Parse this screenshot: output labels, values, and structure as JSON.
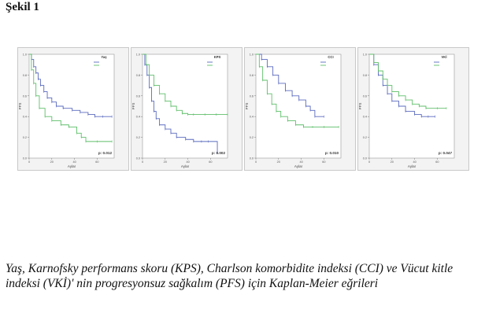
{
  "figure": {
    "title": "Şekil 1",
    "caption": "Yaş, Karnofsky performans skoru (KPS), Charlson komorbidite indeksi (CCI) ve Vücut kitle indeksi (VKİ)' nin progresyonsuz sağkalım (PFS) için Kaplan-Meier eğrileri"
  },
  "chart_data": [
    {
      "type": "line",
      "xlabel": "Aylar",
      "ylabel": "PFS",
      "legend_title": "Yaş",
      "legend_position": "top-right",
      "p_value": "p: 0.012",
      "xlim": [
        0,
        75
      ],
      "ylim": [
        0,
        1
      ],
      "x_ticks": [
        0,
        20,
        40,
        60
      ],
      "y_ticks": [
        0,
        0.2,
        0.4,
        0.6,
        0.8,
        1.0
      ],
      "colors": [
        "#5b6bbf",
        "#5fbf6a"
      ],
      "series": [
        {
          "x": [
            0,
            2,
            4,
            6,
            8,
            10,
            13,
            16,
            20,
            24,
            30,
            38,
            45,
            52,
            58,
            65,
            73
          ],
          "y": [
            1.0,
            0.95,
            0.88,
            0.82,
            0.76,
            0.7,
            0.64,
            0.58,
            0.54,
            0.5,
            0.48,
            0.46,
            0.44,
            0.42,
            0.4,
            0.4,
            0.4
          ]
        },
        {
          "x": [
            0,
            2,
            4,
            6,
            9,
            14,
            20,
            28,
            35,
            42,
            46,
            50,
            60,
            73
          ],
          "y": [
            1.0,
            0.85,
            0.72,
            0.6,
            0.48,
            0.4,
            0.36,
            0.32,
            0.3,
            0.24,
            0.2,
            0.16,
            0.16,
            0.16
          ]
        }
      ]
    },
    {
      "type": "line",
      "xlabel": "Aylar",
      "ylabel": "PFS",
      "legend_title": "KPS",
      "legend_position": "top-right",
      "p_value": "p: 0.002",
      "xlim": [
        0,
        75
      ],
      "ylim": [
        0,
        1
      ],
      "x_ticks": [
        0,
        20,
        40,
        60
      ],
      "y_ticks": [
        0,
        0.2,
        0.4,
        0.6,
        0.8,
        1.0
      ],
      "colors": [
        "#5b6bbf",
        "#5fbf6a"
      ],
      "series": [
        {
          "x": [
            0,
            2,
            4,
            6,
            8,
            10,
            12,
            15,
            20,
            25,
            30,
            38,
            45,
            52,
            58,
            66
          ],
          "y": [
            1.0,
            0.9,
            0.8,
            0.68,
            0.55,
            0.45,
            0.38,
            0.32,
            0.28,
            0.24,
            0.2,
            0.18,
            0.16,
            0.16,
            0.16,
            0.05
          ]
        },
        {
          "x": [
            0,
            3,
            6,
            10,
            15,
            20,
            25,
            30,
            35,
            40,
            45,
            55,
            65,
            75
          ],
          "y": [
            1.0,
            0.9,
            0.8,
            0.7,
            0.62,
            0.55,
            0.5,
            0.46,
            0.43,
            0.42,
            0.42,
            0.42,
            0.42,
            0.42
          ]
        }
      ]
    },
    {
      "type": "line",
      "xlabel": "Aylar",
      "ylabel": "PFS",
      "legend_title": "CCI",
      "legend_position": "top-right",
      "p_value": "p: 0.010",
      "xlim": [
        0,
        75
      ],
      "ylim": [
        0,
        1
      ],
      "x_ticks": [
        0,
        20,
        40,
        60
      ],
      "y_ticks": [
        0,
        0.2,
        0.4,
        0.6,
        0.8,
        1.0
      ],
      "colors": [
        "#5b6bbf",
        "#5fbf6a"
      ],
      "series": [
        {
          "x": [
            0,
            5,
            10,
            15,
            20,
            26,
            32,
            38,
            44,
            48,
            52,
            60
          ],
          "y": [
            1.0,
            0.95,
            0.88,
            0.8,
            0.72,
            0.65,
            0.6,
            0.56,
            0.5,
            0.46,
            0.4,
            0.4
          ]
        },
        {
          "x": [
            0,
            3,
            6,
            10,
            14,
            18,
            22,
            28,
            35,
            42,
            50,
            60,
            73
          ],
          "y": [
            1.0,
            0.88,
            0.75,
            0.62,
            0.52,
            0.45,
            0.4,
            0.36,
            0.32,
            0.3,
            0.3,
            0.3,
            0.3
          ]
        }
      ]
    },
    {
      "type": "line",
      "xlabel": "Aylar",
      "ylabel": "PFS",
      "legend_title": "VKİ",
      "legend_position": "top-right",
      "p_value": "p: 0.047",
      "xlim": [
        0,
        75
      ],
      "ylim": [
        0,
        1
      ],
      "x_ticks": [
        0,
        20,
        40,
        60
      ],
      "y_ticks": [
        0,
        0.2,
        0.4,
        0.6,
        0.8,
        1.0
      ],
      "colors": [
        "#5b6bbf",
        "#5fbf6a"
      ],
      "series": [
        {
          "x": [
            0,
            4,
            8,
            12,
            16,
            20,
            26,
            32,
            40,
            46,
            52,
            58
          ],
          "y": [
            1.0,
            0.9,
            0.8,
            0.7,
            0.62,
            0.55,
            0.5,
            0.45,
            0.42,
            0.4,
            0.4,
            0.4
          ]
        },
        {
          "x": [
            0,
            4,
            8,
            12,
            16,
            20,
            26,
            32,
            38,
            44,
            50,
            60,
            68
          ],
          "y": [
            1.0,
            0.92,
            0.84,
            0.76,
            0.7,
            0.64,
            0.6,
            0.56,
            0.52,
            0.5,
            0.48,
            0.48,
            0.48
          ]
        }
      ]
    }
  ]
}
